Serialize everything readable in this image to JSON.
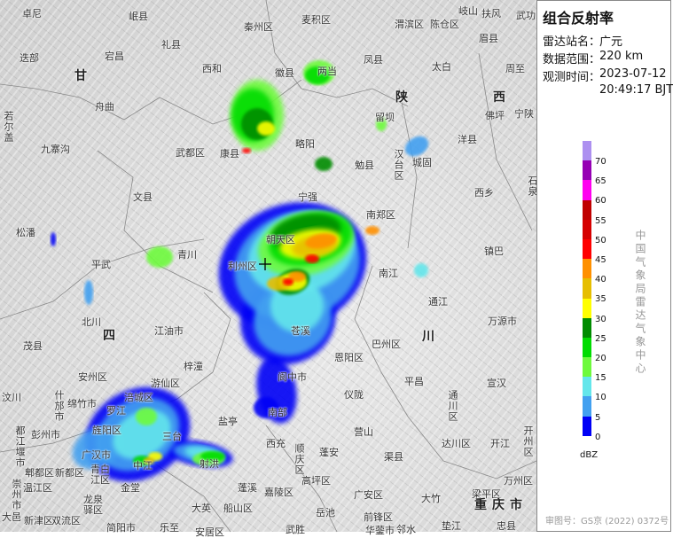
{
  "panel": {
    "title": "组合反射率",
    "station_label": "雷达站名：",
    "station": "广元",
    "range_label": "数据范围：",
    "range": "220 km",
    "time_label": "观测时间：",
    "date": "2023-07-12",
    "time": "20:49:17 BJT",
    "unit": "dBZ",
    "organization": "中国气象局雷达气象中心",
    "credit": "审图号：GS京 (2022) 0372号"
  },
  "legend": {
    "ticks": [
      "70",
      "65",
      "60",
      "55",
      "50",
      "45",
      "40",
      "35",
      "30",
      "25",
      "20",
      "15",
      "10",
      "5",
      "0"
    ],
    "colors": [
      "#ad90f0",
      "#9600b4",
      "#ff00f0",
      "#c00000",
      "#d60000",
      "#ff0000",
      "#ff9000",
      "#e6be00",
      "#ffff00",
      "#008c00",
      "#00dc00",
      "#6efa3d",
      "#64e6eb",
      "#42a0f0",
      "#0000f6"
    ]
  },
  "map": {
    "station_marker": "radar-station-cross",
    "labels": [
      "卓尼",
      "岷县",
      "礼县",
      "秦州区",
      "迭部",
      "宕昌",
      "甘",
      "西和",
      "舟曲",
      "若尔盖",
      "九寨沟",
      "武都区",
      "康县",
      "文县",
      "松潘",
      "平武",
      "青川",
      "利州区",
      "麦积区",
      "渭滨区",
      "陈仓区",
      "岐山",
      "扶风",
      "武功",
      "眉县",
      "凤县",
      "太白",
      "周至",
      "徽县",
      "两当",
      "陕",
      "西",
      "佛坪",
      "宁陕",
      "留坝",
      "略阳",
      "勉县",
      "汉台区",
      "城固",
      "洋县",
      "西乡",
      "石泉",
      "宁强",
      "南郑区",
      "镇巴",
      "朝天区",
      "北川",
      "四",
      "茂县",
      "江油市",
      "安州区",
      "梓潼",
      "汶川",
      "什邡市",
      "绵竹市",
      "涪城区",
      "游仙区",
      "罗江",
      "盐亭",
      "都江堰市",
      "彭州市",
      "旌阳区",
      "三台",
      "广汉市",
      "射洪",
      "郫都区",
      "新都区",
      "青白江区",
      "中江",
      "蓬溪",
      "崇州市",
      "温江区",
      "金堂",
      "龙泉驿区",
      "大英",
      "船山区",
      "大邑",
      "新津区",
      "双流区",
      "简阳市",
      "乐至",
      "安居区",
      "南江",
      "通江",
      "万源市",
      "巴州区",
      "川",
      "苍溪",
      "恩阳区",
      "阆中市",
      "平昌",
      "宣汉",
      "仪陇",
      "南部",
      "通川区",
      "营山",
      "西充",
      "顺庆区",
      "蓬安",
      "渠县",
      "达川区",
      "开江",
      "开州区",
      "高坪区",
      "嘉陵区",
      "广安区",
      "大竹",
      "梁平区",
      "万州区",
      "重庆市",
      "岳池",
      "前锋区",
      "垫江",
      "忠县",
      "武胜",
      "华蓥市",
      "邻水"
    ]
  }
}
